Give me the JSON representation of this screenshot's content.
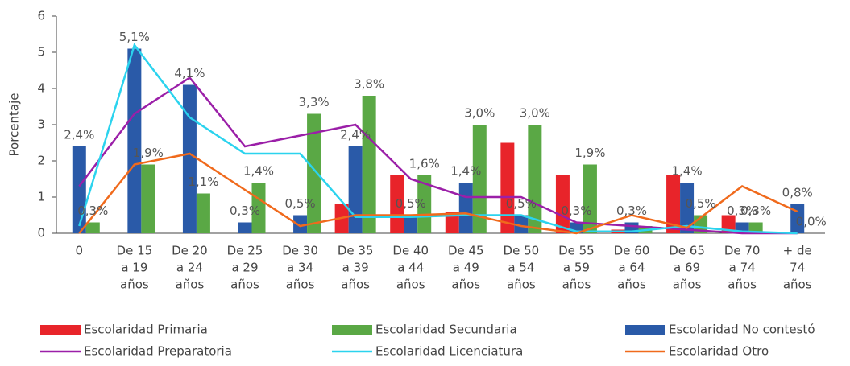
{
  "chart_data": {
    "type": "bar",
    "y_axis_label": "Porcentaje",
    "categories": [
      [
        "0"
      ],
      [
        "De 15",
        "a 19",
        "años"
      ],
      [
        "De 20",
        "a 24",
        "años"
      ],
      [
        "De 25",
        "a 29",
        "años"
      ],
      [
        "De 30",
        "a 34",
        "años"
      ],
      [
        "De 35",
        "a 39",
        "años"
      ],
      [
        "De 40",
        "a 44",
        "años"
      ],
      [
        "De 45",
        "a 49",
        "años"
      ],
      [
        "De 50",
        "a 54",
        "años"
      ],
      [
        "De 55",
        "a 59",
        "años"
      ],
      [
        "De 60",
        "a 64",
        "años"
      ],
      [
        "De 65",
        "a 69",
        "años"
      ],
      [
        "De 70",
        "a 74",
        "años"
      ],
      [
        "+ de",
        "74",
        "años"
      ]
    ],
    "series": [
      {
        "name": "Escolaridad Primaria",
        "kind": "bar",
        "color": "#e8242a",
        "values": [
          0,
          0,
          0,
          0,
          0,
          0.8,
          1.6,
          0.6,
          2.5,
          1.6,
          0.1,
          1.6,
          0.5,
          0
        ]
      },
      {
        "name": "Escolaridad Secundaria",
        "kind": "bar",
        "color": "#5aa845",
        "values": [
          0.3,
          1.9,
          1.1,
          1.4,
          3.3,
          3.8,
          1.6,
          3.0,
          3.0,
          1.9,
          0.2,
          0.5,
          0.3,
          0.0
        ],
        "value_labels": [
          "0,3%",
          "1,9%",
          "1,1%",
          "1,4%",
          "3,3%",
          "3,8%",
          "1,6%",
          "3,0%",
          "3,0%",
          "1,9%",
          null,
          "0,5%",
          "0,3%",
          "0,0%"
        ]
      },
      {
        "name": "Escolaridad No contestó",
        "kind": "bar",
        "color": "#2a5aa8",
        "values": [
          2.4,
          5.1,
          4.1,
          0.3,
          0.5,
          2.4,
          0.5,
          1.4,
          0.5,
          0.3,
          0.3,
          1.4,
          0.3,
          0.8
        ],
        "value_labels": [
          "2,4%",
          "5,1%",
          "4,1%",
          "0,3%",
          "0,5%",
          "2,4%",
          "0,5%",
          "1,4%",
          "0,5%",
          "0,3%",
          "0,3%",
          "1,4%",
          "0,3%",
          "0,8%"
        ]
      },
      {
        "name": "Escolaridad Preparatoria",
        "kind": "line",
        "color": "#9b1fa8",
        "values": [
          1.3,
          3.3,
          4.3,
          2.4,
          2.7,
          3.0,
          1.5,
          1.0,
          1.0,
          0.3,
          0.2,
          0.1,
          0,
          0
        ]
      },
      {
        "name": "Escolaridad Licenciatura",
        "kind": "line",
        "color": "#2bd3ee",
        "values": [
          0.2,
          5.2,
          3.2,
          2.2,
          2.2,
          0.45,
          0.45,
          0.5,
          0.5,
          0.05,
          0.05,
          0.2,
          0.05,
          0.0
        ]
      },
      {
        "name": "Escolaridad Otro",
        "kind": "line",
        "color": "#f06a1c",
        "values": [
          0,
          1.9,
          2.2,
          1.2,
          0.2,
          0.5,
          0.5,
          0.55,
          0.2,
          0,
          0.5,
          0.15,
          1.3,
          0.6
        ]
      }
    ],
    "ylim": [
      0,
      6
    ],
    "yticks": [
      0,
      1,
      2,
      3,
      4,
      5,
      6
    ]
  }
}
